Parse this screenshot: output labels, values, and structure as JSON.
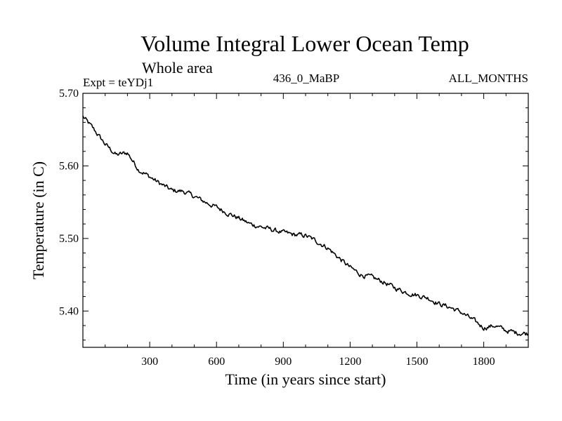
{
  "chart_data": {
    "type": "line",
    "title": "Volume Integral Lower Ocean Temp",
    "subtitle": "Whole area",
    "expt_label": "Expt = teYDj1",
    "center_label": "436_0_MaBP",
    "right_label": "ALL_MONTHS",
    "xlabel": "Time (in years since start)",
    "ylabel": "Temperature (in C)",
    "xlim": [
      0,
      2000
    ],
    "ylim": [
      5.35,
      5.7
    ],
    "xticks": [
      300,
      600,
      900,
      1200,
      1500,
      1800
    ],
    "yticks": [
      5.4,
      5.5,
      5.6,
      5.7
    ],
    "ytick_labels": [
      "5.40",
      "5.50",
      "5.60",
      "5.70"
    ],
    "grid": false,
    "series": [
      {
        "name": "teYDj1",
        "x": [
          0,
          50,
          100,
          150,
          200,
          250,
          300,
          350,
          400,
          450,
          500,
          550,
          600,
          650,
          700,
          750,
          800,
          850,
          900,
          950,
          1000,
          1050,
          1100,
          1150,
          1200,
          1250,
          1300,
          1350,
          1400,
          1450,
          1500,
          1550,
          1600,
          1650,
          1700,
          1750,
          1800,
          1850,
          1900,
          1950,
          2000
        ],
        "values": [
          5.668,
          5.65,
          5.63,
          5.615,
          5.618,
          5.595,
          5.585,
          5.575,
          5.566,
          5.565,
          5.558,
          5.55,
          5.543,
          5.535,
          5.528,
          5.52,
          5.516,
          5.512,
          5.508,
          5.505,
          5.504,
          5.496,
          5.487,
          5.473,
          5.46,
          5.45,
          5.446,
          5.44,
          5.432,
          5.426,
          5.422,
          5.418,
          5.41,
          5.405,
          5.398,
          5.388,
          5.377,
          5.38,
          5.373,
          5.37,
          5.369
        ]
      }
    ]
  }
}
